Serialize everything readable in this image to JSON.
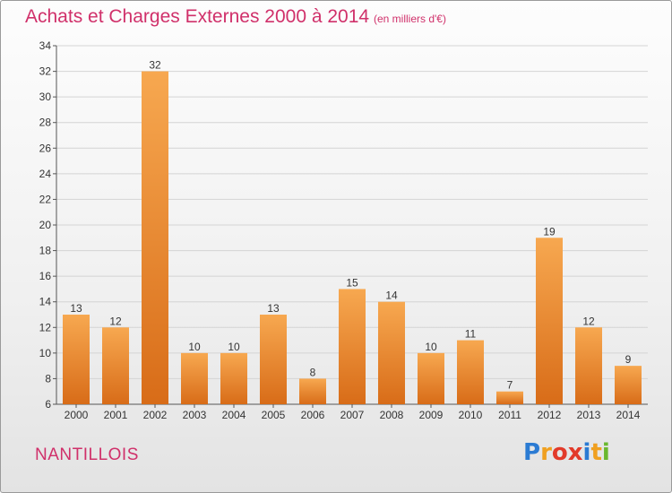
{
  "title": "Achats et Charges Externes 2000 à 2014",
  "subtitle": "(en milliers d'€)",
  "place": "NANTILLOIS",
  "logo": {
    "letters": [
      "P",
      "r",
      "o",
      "x",
      "i",
      "t",
      "i"
    ]
  },
  "colors": {
    "bar_top": "#f7a850",
    "bar_bottom": "#d86c18",
    "title": "#d0306a"
  },
  "chart_data": {
    "type": "bar",
    "categories": [
      "2000",
      "2001",
      "2002",
      "2003",
      "2004",
      "2005",
      "2006",
      "2007",
      "2008",
      "2009",
      "2010",
      "2011",
      "2012",
      "2013",
      "2014"
    ],
    "values": [
      13,
      12,
      32,
      10,
      10,
      13,
      8,
      15,
      14,
      10,
      11,
      7,
      19,
      12,
      9
    ],
    "ylim": [
      6,
      34
    ],
    "yticks": [
      6,
      8,
      10,
      12,
      14,
      16,
      18,
      20,
      22,
      24,
      26,
      28,
      30,
      32,
      34
    ],
    "grid": true,
    "data_labels": true,
    "xlabel": "",
    "ylabel": ""
  }
}
